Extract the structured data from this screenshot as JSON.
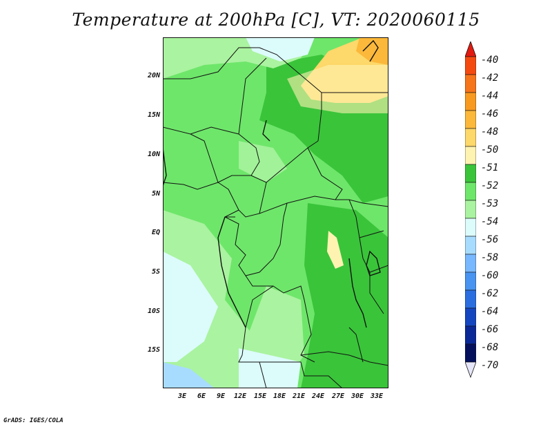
{
  "title": "Temperature at 200hPa [C], VT: 2020060115",
  "credit": "GrADS: IGES/COLA",
  "map": {
    "lat_labels": [
      "20N",
      "15N",
      "10N",
      "5N",
      "EQ",
      "5S",
      "10S",
      "15S"
    ],
    "lon_labels": [
      "3E",
      "6E",
      "9E",
      "12E",
      "15E",
      "18E",
      "21E",
      "24E",
      "27E",
      "30E",
      "33E"
    ]
  },
  "legend": {
    "labels": [
      "-40",
      "-42",
      "-44",
      "-46",
      "-48",
      "-50",
      "-51",
      "-52",
      "-53",
      "-54",
      "-56",
      "-58",
      "-60",
      "-62",
      "-64",
      "-66",
      "-68",
      "-70"
    ],
    "colors": [
      "#e31a10",
      "#f44a10",
      "#f6741a",
      "#f89a20",
      "#fbb83a",
      "#fdd86a",
      "#fff3b2",
      "#3ac43a",
      "#6ee66a",
      "#aaf3a0",
      "#dcfbfb",
      "#a8dcff",
      "#78b8ff",
      "#4894f0",
      "#2a6ee0",
      "#1446c0",
      "#0a2896",
      "#04105c"
    ]
  }
}
